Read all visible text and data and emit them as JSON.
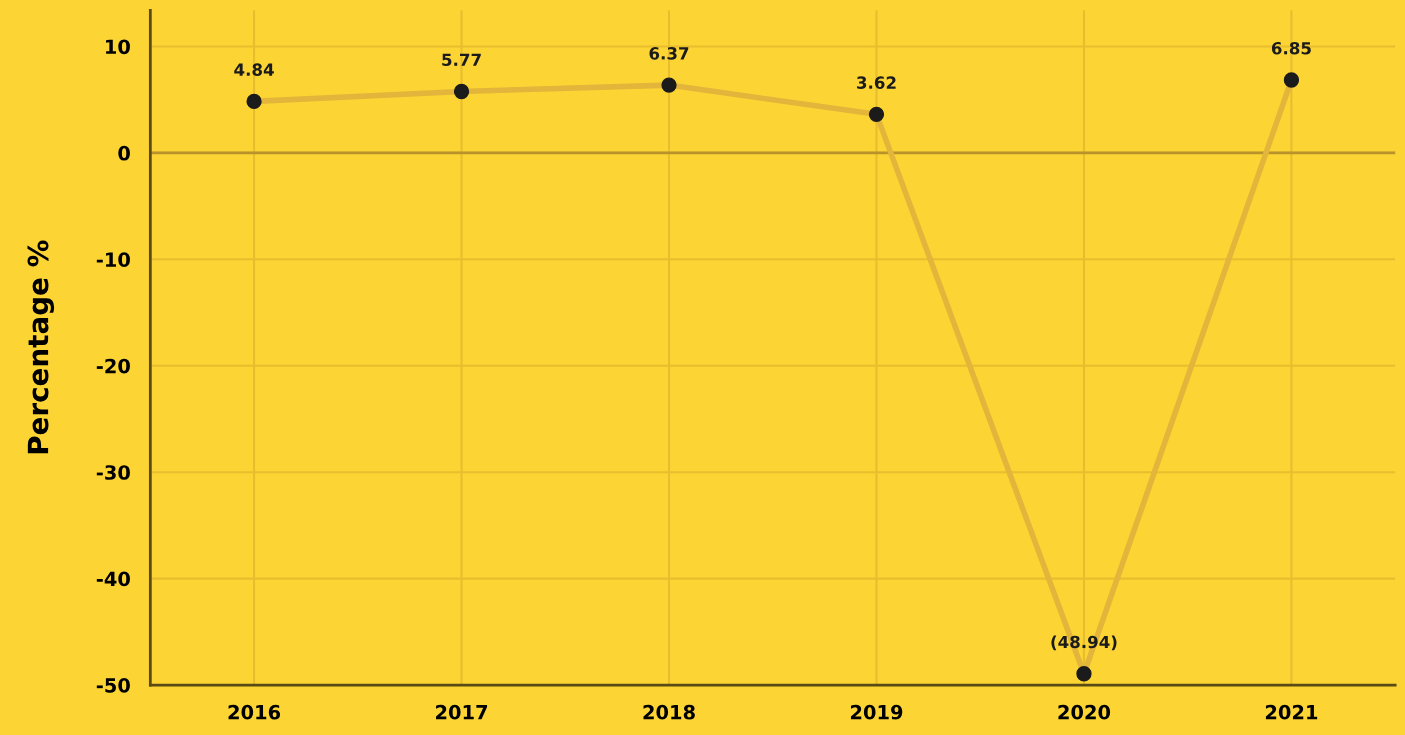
{
  "chart_data": {
    "type": "line",
    "ylabel": "Percentage %",
    "categories": [
      "2016",
      "2017",
      "2018",
      "2019",
      "2020",
      "2021"
    ],
    "series": [
      {
        "color": "#e3b53a",
        "values": [
          4.84,
          5.77,
          6.37,
          3.62,
          -48.94,
          6.85
        ],
        "value_labels": [
          "4.84",
          "5.77",
          "6.37",
          "3.62",
          "(48.94)",
          "6.85"
        ]
      }
    ],
    "marker": "circle",
    "ylim": [
      -50,
      13.4
    ],
    "yticks": [
      -50,
      -40,
      -30,
      -20,
      -10,
      0,
      10
    ],
    "ref_lines": [
      {
        "axis": "y",
        "value": 0,
        "color": "#b8922a"
      }
    ],
    "grid": true
  }
}
